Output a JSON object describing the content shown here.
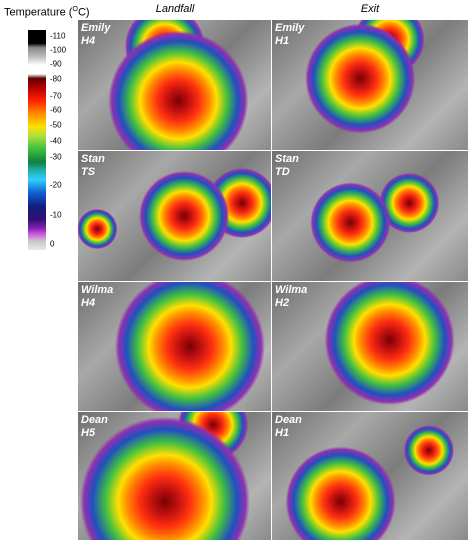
{
  "colorbar": {
    "title": {
      "text": "Temperature (",
      "sup": "O",
      "unit": "C)"
    },
    "ticks": [
      -110,
      -100,
      -90,
      -80,
      -70,
      -60,
      -50,
      -40,
      -30,
      -20,
      -10,
      0
    ]
  },
  "columns": [
    "Landfall",
    "Exit"
  ],
  "panels": [
    {
      "storm": "Emily",
      "category": "H4"
    },
    {
      "storm": "Emily",
      "category": "H1"
    },
    {
      "storm": "Stan",
      "category": "TS"
    },
    {
      "storm": "Stan",
      "category": "TD"
    },
    {
      "storm": "Wilma",
      "category": "H4"
    },
    {
      "storm": "Wilma",
      "category": "H2"
    },
    {
      "storm": "Dean",
      "category": "H5"
    },
    {
      "storm": "Dean",
      "category": "H1"
    }
  ]
}
